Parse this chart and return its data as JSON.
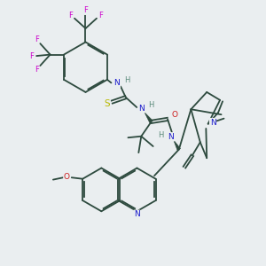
{
  "bg_color": "#eaeef0",
  "bond_color": "#2d4a3e",
  "bond_width": 1.3,
  "figsize": [
    3.0,
    3.0
  ],
  "dpi": 100,
  "colors": {
    "N": "#1a1acc",
    "O": "#cc1a1a",
    "S": "#b8b800",
    "F": "#cc00cc",
    "C": "#2d4a3e",
    "H": "#5a8a7a"
  }
}
